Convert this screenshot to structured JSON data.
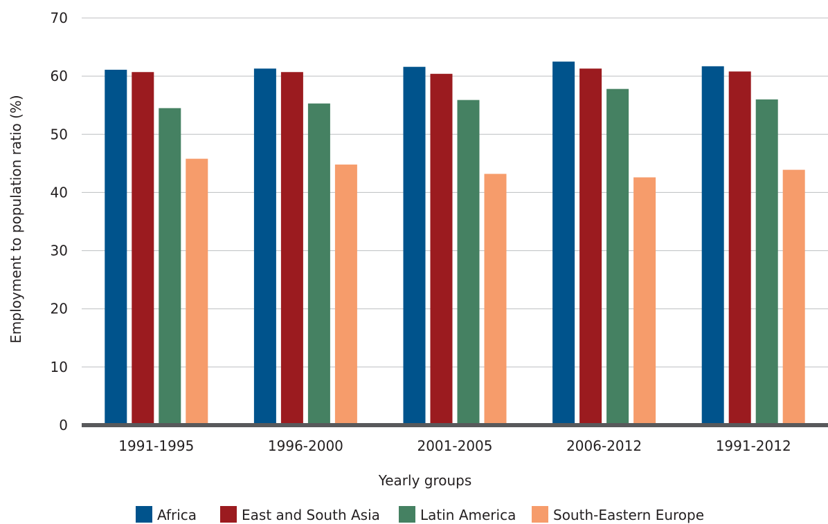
{
  "chart_data": {
    "type": "bar",
    "title": "",
    "xlabel": "Yearly groups",
    "ylabel": "Employment to population ratio (%)",
    "ylim": [
      0,
      70
    ],
    "yticks": [
      0,
      10,
      20,
      30,
      40,
      50,
      60,
      70
    ],
    "grid": true,
    "legend_position": "bottom",
    "categories": [
      "1991-1995",
      "1996-2000",
      "2001-2005",
      "2006-2012",
      "1991-2012"
    ],
    "series": [
      {
        "name": "Africa",
        "color": "#00538c",
        "values": [
          61.1,
          61.3,
          61.6,
          62.5,
          61.7
        ]
      },
      {
        "name": "East and South Asia",
        "color": "#9b1b1f",
        "values": [
          60.7,
          60.7,
          60.4,
          61.3,
          60.8
        ]
      },
      {
        "name": "Latin America",
        "color": "#458162",
        "values": [
          54.5,
          55.3,
          55.9,
          57.8,
          56.0
        ]
      },
      {
        "name": "South-Eastern Europe",
        "color": "#f69c6b",
        "values": [
          45.8,
          44.8,
          43.2,
          42.6,
          43.9
        ]
      }
    ]
  }
}
